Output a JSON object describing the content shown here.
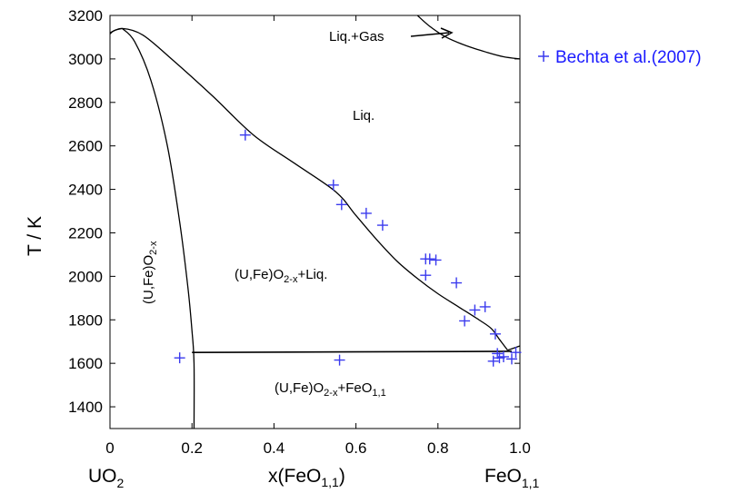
{
  "chart_data": {
    "type": "scatter",
    "xlabel": "x(FeO",
    "xlabel_sub": "1,1",
    "xlabel_tail": ")",
    "ylabel": "T / K",
    "xlim": [
      0,
      1.0
    ],
    "ylim": [
      1300,
      3200
    ],
    "xticks": [
      0,
      0.2,
      0.4,
      0.6,
      0.8,
      1.0
    ],
    "xtick_labels": [
      "0",
      "0.2",
      "0.4",
      "0.6",
      "0.8",
      "1.0"
    ],
    "yticks": [
      1400,
      1600,
      1800,
      2000,
      2200,
      2400,
      2600,
      2800,
      3000,
      3200
    ],
    "ytick_labels": [
      "1400",
      "1600",
      "1800",
      "2000",
      "2200",
      "2400",
      "2600",
      "2800",
      "3000",
      "3200"
    ],
    "endpoint_left": {
      "main": "UO",
      "sub": "2"
    },
    "endpoint_right": {
      "main": "FeO",
      "sub": "1,1"
    },
    "region_labels": {
      "liquid": "Liq.",
      "liq_gas": "Liq.+Gas",
      "solid_solution": {
        "main": "(U,Fe)O",
        "sub": "2-x",
        "tail": ""
      },
      "solid_liquid": {
        "main": "(U,Fe)O",
        "sub": "2-x",
        "tail": "+Liq."
      },
      "two_solids": {
        "main": "(U,Fe)O",
        "sub": "2-x",
        "tail": "+FeO",
        "sub2": "1,1"
      }
    },
    "legend": {
      "marker": "+",
      "label": "Bechta et al.(2007)",
      "position": "right of plot, top",
      "color": "#1a1aff"
    },
    "marker_color": "#3a3aee",
    "curve_color": "#000000",
    "series": [
      {
        "name": "Bechta et al.(2007)",
        "marker": "+",
        "x": [
          0.17,
          0.33,
          0.545,
          0.56,
          0.565,
          0.625,
          0.665,
          0.77,
          0.77,
          0.78,
          0.795,
          0.845,
          0.865,
          0.89,
          0.915,
          0.935,
          0.94,
          0.945,
          0.95,
          0.96,
          0.98,
          0.99
        ],
        "y": [
          1625,
          2650,
          2420,
          1615,
          2330,
          2290,
          2235,
          2080,
          2005,
          2080,
          2075,
          1970,
          1795,
          1845,
          1860,
          1610,
          1735,
          1645,
          1625,
          1630,
          1620,
          1650
        ]
      }
    ],
    "curves": [
      {
        "id": "liquidus",
        "x": [
          0.0,
          0.03,
          0.08,
          0.15,
          0.25,
          0.35,
          0.45,
          0.55,
          0.6,
          0.65,
          0.7,
          0.75,
          0.8,
          0.85,
          0.9,
          0.93,
          0.95,
          0.97
        ],
        "y": [
          3120,
          3140,
          3110,
          3000,
          2830,
          2650,
          2520,
          2390,
          2280,
          2170,
          2070,
          1990,
          1920,
          1860,
          1800,
          1760,
          1710,
          1660
        ]
      },
      {
        "id": "solidus",
        "x": [
          0.03,
          0.06,
          0.1,
          0.14,
          0.17,
          0.19,
          0.2,
          0.205,
          0.205
        ],
        "y": [
          3140,
          3080,
          2900,
          2600,
          2250,
          1950,
          1750,
          1600,
          1300
        ]
      },
      {
        "id": "uo2-liquidus-left",
        "x": [
          0.0,
          0.01,
          0.03
        ],
        "y": [
          3115,
          3130,
          3140
        ]
      },
      {
        "id": "eutectic",
        "x": [
          0.2,
          0.98
        ],
        "y": [
          1650,
          1655
        ]
      },
      {
        "id": "feo-eutectic-tail",
        "x": [
          0.97,
          1.0
        ],
        "y": [
          1660,
          1680
        ]
      },
      {
        "id": "liq-gas",
        "x": [
          0.75,
          0.78,
          0.82,
          0.87,
          0.92,
          0.96,
          1.0
        ],
        "y": [
          3200,
          3150,
          3100,
          3060,
          3030,
          3010,
          3000
        ]
      }
    ]
  }
}
